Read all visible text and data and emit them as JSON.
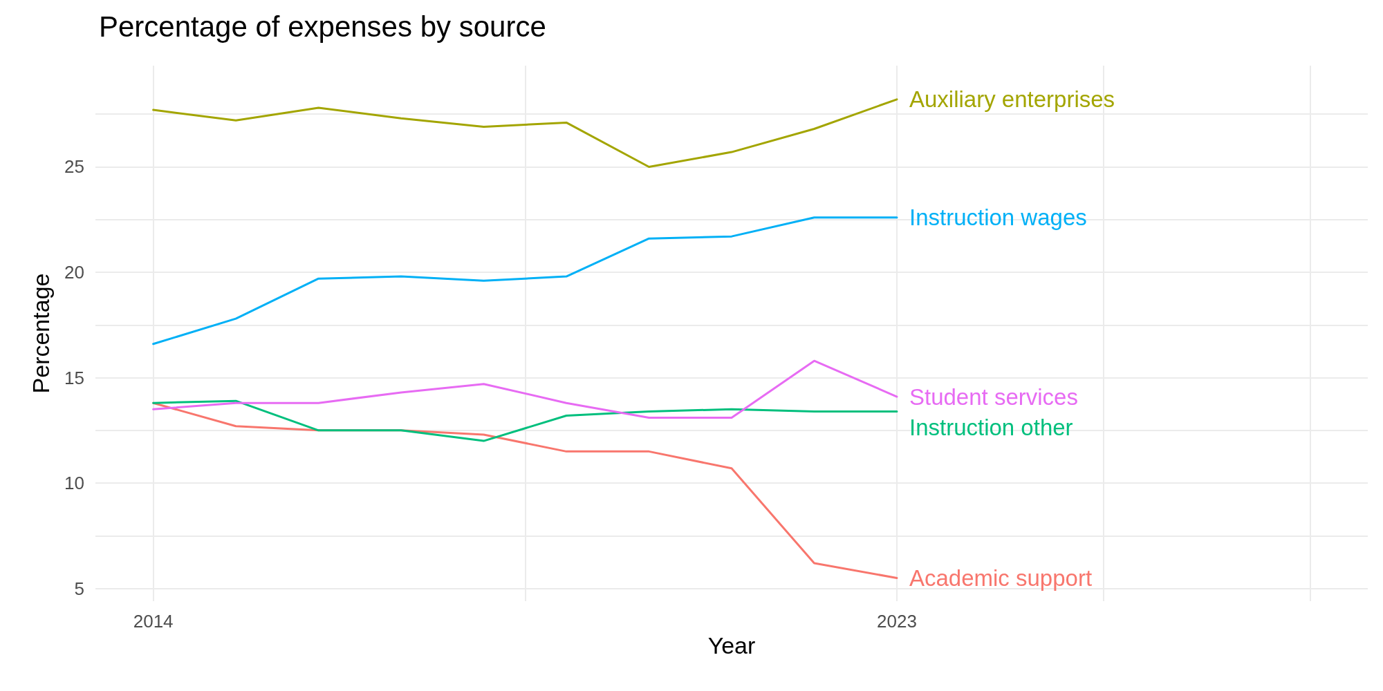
{
  "chart_data": {
    "type": "line",
    "title": "Percentage of expenses by source",
    "xlabel": "Year",
    "ylabel": "Percentage",
    "x": [
      2014,
      2015,
      2016,
      2017,
      2018,
      2019,
      2020,
      2021,
      2022,
      2023
    ],
    "series": [
      {
        "name": "Auxiliary enterprises",
        "color": "#a3a500",
        "values": [
          27.7,
          27.2,
          27.8,
          27.3,
          26.9,
          27.1,
          25.0,
          25.7,
          26.8,
          28.2
        ]
      },
      {
        "name": "Instruction wages",
        "color": "#00b0f6",
        "values": [
          16.6,
          17.8,
          19.7,
          19.8,
          19.6,
          19.8,
          21.6,
          21.7,
          22.6,
          22.6
        ]
      },
      {
        "name": "Student services",
        "color": "#e76bf3",
        "values": [
          13.5,
          13.8,
          13.8,
          14.3,
          14.7,
          13.8,
          13.1,
          13.1,
          15.8,
          14.1
        ]
      },
      {
        "name": "Instruction other",
        "color": "#00bf7d",
        "values": [
          13.8,
          13.9,
          12.5,
          12.5,
          12.0,
          13.2,
          13.4,
          13.5,
          13.4,
          13.4
        ]
      },
      {
        "name": "Academic support",
        "color": "#f8766d",
        "values": [
          13.8,
          12.7,
          12.5,
          12.5,
          12.3,
          11.5,
          11.5,
          10.7,
          6.2,
          5.5
        ]
      }
    ],
    "xlim": [
      2013.3,
      2028.7
    ],
    "xticks": [
      2014,
      {
        "value": 2018.5,
        "label": null
      },
      2023,
      {
        "value": 2025.5,
        "label": null
      },
      {
        "value": 2028,
        "label": null
      }
    ],
    "ylim": [
      4.4,
      29.8
    ],
    "yticks": [
      5,
      {
        "value": 7.5,
        "label": null
      },
      10,
      {
        "value": 12.5,
        "label": null
      },
      15,
      {
        "value": 17.5,
        "label": null
      },
      20,
      {
        "value": 22.5,
        "label": null
      },
      25,
      {
        "value": 27.5,
        "label": null
      }
    ],
    "grid": true,
    "legend": false,
    "marker": "none",
    "line_style": "solid"
  }
}
